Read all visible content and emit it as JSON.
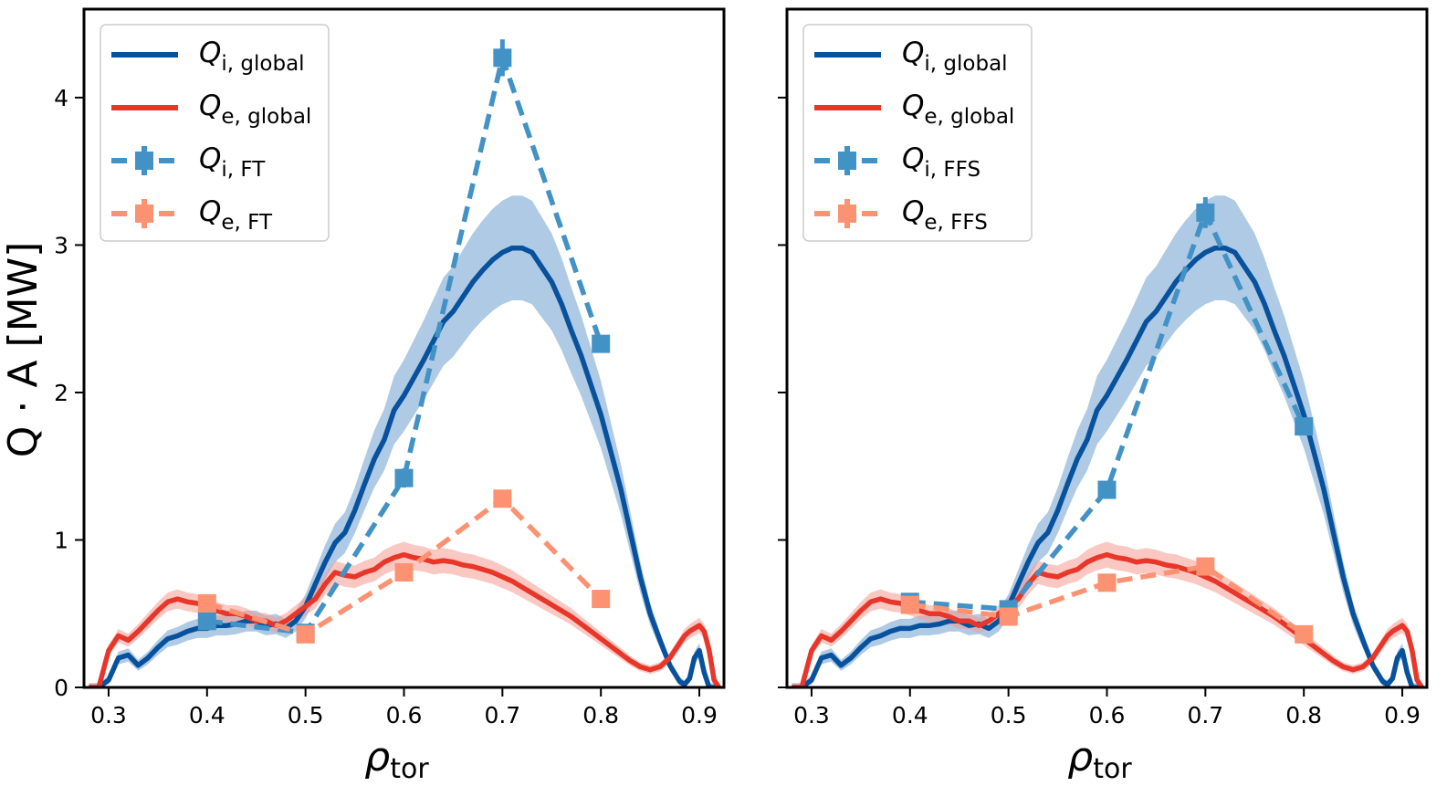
{
  "figure": {
    "ylabel": "Q · A [MW]",
    "xlabel_symbol": "ρ",
    "xlabel_sub": "tor",
    "colors": {
      "qi_global": "#08519c",
      "qe_global": "#e8362a",
      "qi_band": "#6d9fd0",
      "qe_band": "#f59a90",
      "qi_flux_tube": "#4292c6",
      "qe_flux_tube": "#fc9272"
    }
  },
  "chart_data": [
    {
      "type": "line",
      "panel": "left",
      "xlim": [
        0.275,
        0.925
      ],
      "ylim": [
        0,
        4.6
      ],
      "xticks": [
        0.3,
        0.4,
        0.5,
        0.6,
        0.7,
        0.8,
        0.9
      ],
      "xtick_labels": [
        "0.3",
        "0.4",
        "0.5",
        "0.6",
        "0.7",
        "0.8",
        "0.9"
      ],
      "yticks": [
        0,
        1,
        2,
        3,
        4
      ],
      "ytick_labels": [
        "0",
        "1",
        "2",
        "3",
        "4"
      ],
      "xlabel": "ρtor",
      "ylabel": "Q · A [MW]",
      "grid": false,
      "legend_position": "top-left",
      "legend": [
        {
          "base": "Q",
          "sub": "i, global",
          "style": "line",
          "color": "#08519c"
        },
        {
          "base": "Q",
          "sub": "e, global",
          "style": "line",
          "color": "#e8362a"
        },
        {
          "base": "Q",
          "sub": "i, FT",
          "style": "dashed-marker",
          "color": "#4292c6"
        },
        {
          "base": "Q",
          "sub": "e, FT",
          "style": "dashed-marker",
          "color": "#fc9272"
        }
      ],
      "series": [
        {
          "name": "Qi, global",
          "kind": "line",
          "color": "#08519c",
          "band_color": "#6d9fd0",
          "band": 0.18,
          "x": [
            0.28,
            0.29,
            0.3,
            0.31,
            0.32,
            0.33,
            0.34,
            0.35,
            0.36,
            0.37,
            0.38,
            0.39,
            0.4,
            0.41,
            0.42,
            0.43,
            0.44,
            0.45,
            0.46,
            0.47,
            0.48,
            0.49,
            0.5,
            0.51,
            0.52,
            0.53,
            0.54,
            0.55,
            0.56,
            0.57,
            0.58,
            0.59,
            0.6,
            0.61,
            0.62,
            0.63,
            0.64,
            0.65,
            0.66,
            0.67,
            0.68,
            0.69,
            0.7,
            0.71,
            0.72,
            0.73,
            0.74,
            0.75,
            0.76,
            0.77,
            0.78,
            0.79,
            0.8,
            0.81,
            0.82,
            0.83,
            0.84,
            0.85,
            0.86,
            0.87,
            0.88,
            0.885,
            0.89,
            0.895,
            0.9,
            0.905,
            0.91,
            0.915,
            0.92
          ],
          "y": [
            0,
            0,
            0.05,
            0.2,
            0.22,
            0.15,
            0.2,
            0.27,
            0.33,
            0.35,
            0.38,
            0.4,
            0.4,
            0.42,
            0.42,
            0.43,
            0.45,
            0.45,
            0.42,
            0.43,
            0.4,
            0.45,
            0.55,
            0.7,
            0.85,
            0.98,
            1.05,
            1.2,
            1.38,
            1.55,
            1.68,
            1.88,
            1.98,
            2.1,
            2.22,
            2.35,
            2.48,
            2.55,
            2.65,
            2.75,
            2.83,
            2.9,
            2.95,
            2.98,
            2.98,
            2.95,
            2.85,
            2.75,
            2.6,
            2.42,
            2.25,
            2.05,
            1.85,
            1.6,
            1.35,
            1.05,
            0.75,
            0.5,
            0.32,
            0.15,
            0.04,
            0.02,
            0.06,
            0.2,
            0.25,
            0.1,
            0,
            0,
            0
          ]
        },
        {
          "name": "Qe, global",
          "kind": "line",
          "color": "#e8362a",
          "band_color": "#f59a90",
          "band": 0.12,
          "x": [
            0.28,
            0.29,
            0.3,
            0.31,
            0.32,
            0.33,
            0.34,
            0.35,
            0.36,
            0.37,
            0.38,
            0.39,
            0.4,
            0.41,
            0.42,
            0.43,
            0.44,
            0.45,
            0.46,
            0.47,
            0.48,
            0.49,
            0.5,
            0.51,
            0.52,
            0.53,
            0.54,
            0.55,
            0.56,
            0.57,
            0.58,
            0.59,
            0.6,
            0.61,
            0.62,
            0.63,
            0.64,
            0.65,
            0.66,
            0.67,
            0.68,
            0.69,
            0.7,
            0.71,
            0.72,
            0.73,
            0.74,
            0.75,
            0.76,
            0.77,
            0.78,
            0.79,
            0.8,
            0.81,
            0.82,
            0.83,
            0.84,
            0.85,
            0.86,
            0.87,
            0.88,
            0.885,
            0.89,
            0.895,
            0.9,
            0.905,
            0.91,
            0.915,
            0.92
          ],
          "y": [
            0,
            0,
            0.25,
            0.35,
            0.32,
            0.38,
            0.45,
            0.52,
            0.58,
            0.6,
            0.58,
            0.57,
            0.55,
            0.52,
            0.5,
            0.5,
            0.48,
            0.45,
            0.45,
            0.42,
            0.45,
            0.5,
            0.55,
            0.6,
            0.7,
            0.78,
            0.76,
            0.75,
            0.78,
            0.8,
            0.85,
            0.88,
            0.9,
            0.88,
            0.87,
            0.85,
            0.86,
            0.85,
            0.83,
            0.82,
            0.8,
            0.78,
            0.75,
            0.72,
            0.68,
            0.64,
            0.6,
            0.56,
            0.52,
            0.48,
            0.43,
            0.38,
            0.33,
            0.28,
            0.23,
            0.18,
            0.14,
            0.12,
            0.14,
            0.2,
            0.3,
            0.35,
            0.38,
            0.4,
            0.42,
            0.38,
            0.25,
            0.05,
            0
          ]
        },
        {
          "name": "Qi, FT",
          "kind": "dashed-marker",
          "color": "#4292c6",
          "x": [
            0.4,
            0.5,
            0.6,
            0.7,
            0.8
          ],
          "y": [
            0.45,
            0.37,
            1.42,
            4.27,
            2.33
          ],
          "err": [
            0.02,
            0.02,
            0.04,
            0.1,
            0.03
          ]
        },
        {
          "name": "Qe, FT",
          "kind": "dashed-marker",
          "color": "#fc9272",
          "x": [
            0.4,
            0.5,
            0.6,
            0.7,
            0.8
          ],
          "y": [
            0.57,
            0.36,
            0.78,
            1.28,
            0.6
          ],
          "err": [
            0.02,
            0.02,
            0.02,
            0.03,
            0.02
          ]
        }
      ]
    },
    {
      "type": "line",
      "panel": "right",
      "xlim": [
        0.275,
        0.925
      ],
      "ylim": [
        0,
        4.6
      ],
      "xticks": [
        0.3,
        0.4,
        0.5,
        0.6,
        0.7,
        0.8,
        0.9
      ],
      "xtick_labels": [
        "0.3",
        "0.4",
        "0.5",
        "0.6",
        "0.7",
        "0.8",
        "0.9"
      ],
      "yticks": [
        0,
        1,
        2,
        3,
        4
      ],
      "ytick_labels": [],
      "xlabel": "ρtor",
      "grid": false,
      "legend_position": "top-left",
      "legend": [
        {
          "base": "Q",
          "sub": "i, global",
          "style": "line",
          "color": "#08519c"
        },
        {
          "base": "Q",
          "sub": "e, global",
          "style": "line",
          "color": "#e8362a"
        },
        {
          "base": "Q",
          "sub": "i, FFS",
          "style": "dashed-marker",
          "color": "#4292c6"
        },
        {
          "base": "Q",
          "sub": "e, FFS",
          "style": "dashed-marker",
          "color": "#fc9272"
        }
      ],
      "series": [
        {
          "name": "Qi, global",
          "kind": "line",
          "color": "#08519c",
          "band_color": "#6d9fd0",
          "band": 0.18,
          "x": [
            0.28,
            0.29,
            0.3,
            0.31,
            0.32,
            0.33,
            0.34,
            0.35,
            0.36,
            0.37,
            0.38,
            0.39,
            0.4,
            0.41,
            0.42,
            0.43,
            0.44,
            0.45,
            0.46,
            0.47,
            0.48,
            0.49,
            0.5,
            0.51,
            0.52,
            0.53,
            0.54,
            0.55,
            0.56,
            0.57,
            0.58,
            0.59,
            0.6,
            0.61,
            0.62,
            0.63,
            0.64,
            0.65,
            0.66,
            0.67,
            0.68,
            0.69,
            0.7,
            0.71,
            0.72,
            0.73,
            0.74,
            0.75,
            0.76,
            0.77,
            0.78,
            0.79,
            0.8,
            0.81,
            0.82,
            0.83,
            0.84,
            0.85,
            0.86,
            0.87,
            0.88,
            0.885,
            0.89,
            0.895,
            0.9,
            0.905,
            0.91,
            0.915,
            0.92
          ],
          "y": [
            0,
            0,
            0.05,
            0.2,
            0.22,
            0.15,
            0.2,
            0.27,
            0.33,
            0.35,
            0.38,
            0.4,
            0.4,
            0.42,
            0.42,
            0.43,
            0.45,
            0.45,
            0.42,
            0.43,
            0.4,
            0.45,
            0.55,
            0.7,
            0.85,
            0.98,
            1.05,
            1.2,
            1.38,
            1.55,
            1.68,
            1.88,
            1.98,
            2.1,
            2.22,
            2.35,
            2.48,
            2.55,
            2.65,
            2.75,
            2.83,
            2.9,
            2.95,
            2.98,
            2.98,
            2.95,
            2.85,
            2.75,
            2.6,
            2.42,
            2.25,
            2.05,
            1.85,
            1.6,
            1.35,
            1.05,
            0.75,
            0.5,
            0.32,
            0.15,
            0.04,
            0.02,
            0.06,
            0.2,
            0.25,
            0.1,
            0,
            0,
            0
          ]
        },
        {
          "name": "Qe, global",
          "kind": "line",
          "color": "#e8362a",
          "band_color": "#f59a90",
          "band": 0.12,
          "x": [
            0.28,
            0.29,
            0.3,
            0.31,
            0.32,
            0.33,
            0.34,
            0.35,
            0.36,
            0.37,
            0.38,
            0.39,
            0.4,
            0.41,
            0.42,
            0.43,
            0.44,
            0.45,
            0.46,
            0.47,
            0.48,
            0.49,
            0.5,
            0.51,
            0.52,
            0.53,
            0.54,
            0.55,
            0.56,
            0.57,
            0.58,
            0.59,
            0.6,
            0.61,
            0.62,
            0.63,
            0.64,
            0.65,
            0.66,
            0.67,
            0.68,
            0.69,
            0.7,
            0.71,
            0.72,
            0.73,
            0.74,
            0.75,
            0.76,
            0.77,
            0.78,
            0.79,
            0.8,
            0.81,
            0.82,
            0.83,
            0.84,
            0.85,
            0.86,
            0.87,
            0.88,
            0.885,
            0.89,
            0.895,
            0.9,
            0.905,
            0.91,
            0.915,
            0.92
          ],
          "y": [
            0,
            0,
            0.25,
            0.35,
            0.32,
            0.38,
            0.45,
            0.52,
            0.58,
            0.6,
            0.58,
            0.57,
            0.55,
            0.52,
            0.5,
            0.5,
            0.48,
            0.45,
            0.45,
            0.42,
            0.45,
            0.5,
            0.55,
            0.6,
            0.7,
            0.78,
            0.76,
            0.75,
            0.78,
            0.8,
            0.85,
            0.88,
            0.9,
            0.88,
            0.87,
            0.85,
            0.86,
            0.85,
            0.83,
            0.82,
            0.8,
            0.78,
            0.75,
            0.72,
            0.68,
            0.64,
            0.6,
            0.56,
            0.52,
            0.48,
            0.43,
            0.38,
            0.33,
            0.28,
            0.23,
            0.18,
            0.14,
            0.12,
            0.14,
            0.2,
            0.3,
            0.35,
            0.38,
            0.4,
            0.42,
            0.38,
            0.25,
            0.05,
            0
          ]
        },
        {
          "name": "Qi, FFS",
          "kind": "dashed-marker",
          "color": "#4292c6",
          "x": [
            0.4,
            0.5,
            0.6,
            0.7,
            0.8
          ],
          "y": [
            0.58,
            0.53,
            1.34,
            3.22,
            1.77
          ],
          "err": [
            0.02,
            0.02,
            0.03,
            0.08,
            0.03
          ]
        },
        {
          "name": "Qe, FFS",
          "kind": "dashed-marker",
          "color": "#fc9272",
          "x": [
            0.4,
            0.5,
            0.6,
            0.7,
            0.8
          ],
          "y": [
            0.56,
            0.48,
            0.71,
            0.82,
            0.36
          ],
          "err": [
            0.02,
            0.02,
            0.02,
            0.03,
            0.02
          ]
        }
      ]
    }
  ]
}
